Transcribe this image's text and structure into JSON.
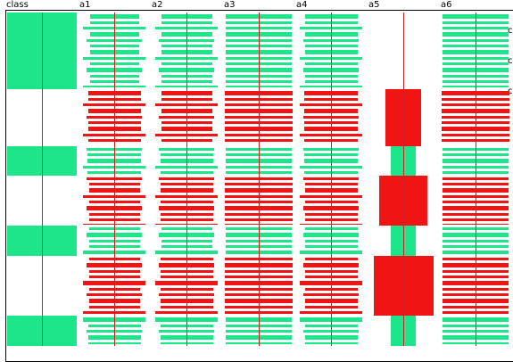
{
  "colors": {
    "green": "#1de58a",
    "red": "#f01414",
    "line": "#cc2222",
    "frame": "#000000",
    "background": "#ffffff"
  },
  "columns": [
    {
      "name": "class",
      "label": "class"
    },
    {
      "name": "a1",
      "label": "a1"
    },
    {
      "name": "a2",
      "label": "a2"
    },
    {
      "name": "a3",
      "label": "a3"
    },
    {
      "name": "a4",
      "label": "a4"
    },
    {
      "name": "a5",
      "label": "a5"
    },
    {
      "name": "a6",
      "label": "a6"
    }
  ],
  "edge_labels": [
    "c",
    "c",
    "c"
  ],
  "class_blocks": [
    {
      "color": "green",
      "range": [
        0.0,
        0.23
      ]
    },
    {
      "color": "green",
      "range": [
        0.4,
        0.49
      ]
    },
    {
      "color": "green",
      "range": [
        0.64,
        0.73
      ]
    },
    {
      "color": "green",
      "range": [
        0.91,
        1.0
      ]
    }
  ],
  "a5_blocks": [
    {
      "color": "red",
      "range": [
        0.23,
        0.4
      ]
    },
    {
      "color": "green",
      "range": [
        0.4,
        0.49
      ]
    },
    {
      "color": "red",
      "range": [
        0.49,
        0.64
      ]
    },
    {
      "color": "green",
      "range": [
        0.64,
        0.73
      ]
    },
    {
      "color": "red",
      "range": [
        0.73,
        0.91
      ]
    },
    {
      "color": "green",
      "range": [
        0.91,
        1.0
      ]
    }
  ],
  "stripe_columns": {
    "a1": [
      {
        "color": "green",
        "segments": [
          [
            0.0,
            0.23,
            0.4
          ],
          [
            0.4,
            0.49,
            0.55
          ],
          [
            0.64,
            0.73,
            0.45
          ],
          [
            0.91,
            1.0,
            0.5
          ]
        ]
      },
      {
        "color": "red",
        "segments": [
          [
            0.23,
            0.4,
            0.5
          ],
          [
            0.49,
            0.64,
            0.45
          ],
          [
            0.73,
            0.91,
            0.45
          ]
        ]
      }
    ],
    "a2": [
      {
        "color": "green",
        "segments": [
          [
            0.0,
            0.23,
            0.45
          ],
          [
            0.4,
            0.49,
            0.5
          ],
          [
            0.64,
            0.73,
            0.45
          ],
          [
            0.91,
            1.0,
            0.5
          ]
        ]
      },
      {
        "color": "red",
        "segments": [
          [
            0.23,
            0.4,
            0.45
          ],
          [
            0.49,
            0.64,
            0.5
          ],
          [
            0.73,
            0.91,
            0.5
          ]
        ]
      }
    ],
    "a3": [
      {
        "color": "green",
        "segments": [
          [
            0.0,
            0.23,
            0.9
          ],
          [
            0.4,
            0.49,
            0.9
          ],
          [
            0.64,
            0.73,
            0.9
          ],
          [
            0.91,
            1.0,
            0.9
          ]
        ]
      },
      {
        "color": "red",
        "segments": [
          [
            0.23,
            0.4,
            0.95
          ],
          [
            0.49,
            0.64,
            0.95
          ],
          [
            0.73,
            0.91,
            0.95
          ]
        ]
      }
    ],
    "a4": [
      {
        "color": "green",
        "segments": [
          [
            0.0,
            0.23,
            0.5
          ],
          [
            0.4,
            0.49,
            0.55
          ],
          [
            0.64,
            0.73,
            0.5
          ],
          [
            0.91,
            1.0,
            0.5
          ]
        ]
      },
      {
        "color": "red",
        "segments": [
          [
            0.23,
            0.4,
            0.55
          ],
          [
            0.49,
            0.64,
            0.5
          ],
          [
            0.73,
            0.91,
            0.5
          ]
        ]
      }
    ],
    "a6": [
      {
        "color": "green",
        "segments": [
          [
            0.0,
            0.23,
            0.9
          ],
          [
            0.4,
            0.49,
            0.9
          ],
          [
            0.64,
            0.73,
            0.9
          ],
          [
            0.91,
            1.0,
            0.9
          ]
        ]
      },
      {
        "color": "red",
        "segments": [
          [
            0.23,
            0.4,
            0.95
          ],
          [
            0.49,
            0.64,
            0.9
          ],
          [
            0.73,
            0.91,
            0.9
          ]
        ]
      }
    ]
  }
}
